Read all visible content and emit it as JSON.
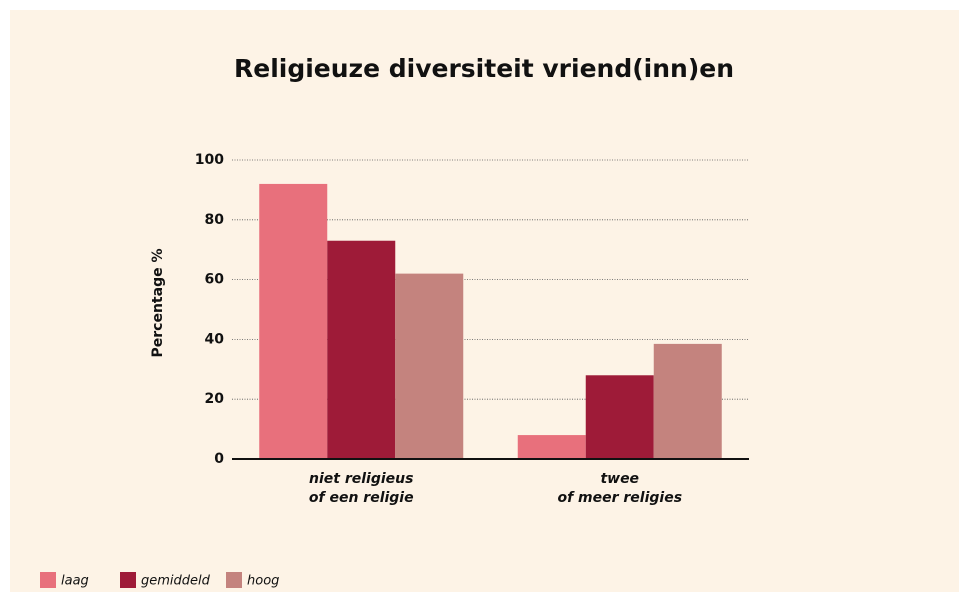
{
  "chart_data": {
    "type": "bar",
    "title": "Religieuze diversiteit vriend(inn)en",
    "ylabel": "Percentage %",
    "categories": [
      [
        "niet religieus",
        "of een religie"
      ],
      [
        "twee",
        "of meer religies"
      ]
    ],
    "series": [
      {
        "name": "laag",
        "color": "#e8707c",
        "values": [
          92,
          8
        ]
      },
      {
        "name": "gemiddeld",
        "color": "#9e1b38",
        "values": [
          73,
          28
        ]
      },
      {
        "name": "hoog",
        "color": "#c4837e",
        "values": [
          62,
          38.5
        ]
      }
    ],
    "ylim": [
      0,
      100
    ],
    "yticks": [
      0,
      20,
      40,
      60,
      80,
      100
    ],
    "grid": true,
    "legend": "bottom-left"
  }
}
